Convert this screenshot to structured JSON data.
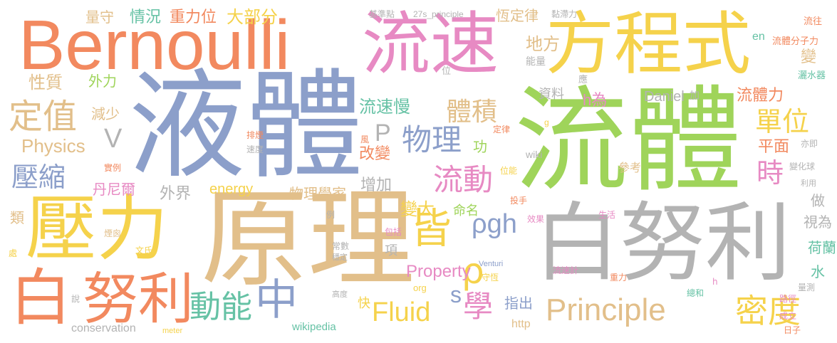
{
  "colors": {
    "orange": "#f2895f",
    "gold": "#f5d24b",
    "green": "#9fd45a",
    "blue": "#8c9fca",
    "tan": "#e2bf8a",
    "pink": "#e78ac3",
    "gray": "#b3b3b3",
    "teal": "#66c2a5"
  },
  "words": [
    {
      "text": "液體"
    },
    {
      "text": "流體"
    },
    {
      "text": "原理"
    },
    {
      "text": "白努利"
    },
    {
      "text": "Bernoulli"
    },
    {
      "text": "流速"
    },
    {
      "text": "方程式"
    },
    {
      "text": "壓力"
    },
    {
      "text": "白"
    },
    {
      "text": "努利"
    },
    {
      "text": "中"
    },
    {
      "text": "皆"
    },
    {
      "text": "ρ"
    },
    {
      "text": "Principle"
    },
    {
      "text": "Fluid"
    },
    {
      "text": "學"
    },
    {
      "text": "動能"
    },
    {
      "text": "密度"
    },
    {
      "text": "物理"
    },
    {
      "text": "流動"
    },
    {
      "text": "單位"
    },
    {
      "text": "時"
    },
    {
      "text": "定值"
    },
    {
      "text": "壓縮"
    },
    {
      "text": "體積"
    },
    {
      "text": "ρgh"
    },
    {
      "text": "V"
    },
    {
      "text": "P"
    },
    {
      "text": "s"
    },
    {
      "text": "Physics"
    },
    {
      "text": "Property"
    },
    {
      "text": "流速慢"
    },
    {
      "text": "情況"
    },
    {
      "text": "重力位"
    },
    {
      "text": "大部分"
    },
    {
      "text": "量守"
    },
    {
      "text": "恆定律"
    },
    {
      "text": "性質"
    },
    {
      "text": "外力"
    },
    {
      "text": "減少"
    },
    {
      "text": "地方"
    },
    {
      "text": "改變"
    },
    {
      "text": "增加"
    },
    {
      "text": "變大"
    },
    {
      "text": "外界"
    },
    {
      "text": "物理學家"
    },
    {
      "text": "丹尼爾"
    },
    {
      "text": "energy"
    },
    {
      "text": "命名"
    },
    {
      "text": "功"
    },
    {
      "text": "h為"
    },
    {
      "text": "Daniel"
    },
    {
      "text": "加"
    },
    {
      "text": "流體力"
    },
    {
      "text": "平面"
    },
    {
      "text": "變"
    },
    {
      "text": "en"
    },
    {
      "text": "流體分子力"
    },
    {
      "text": "流往"
    },
    {
      "text": "灑水器"
    },
    {
      "text": "資料"
    },
    {
      "text": "能量"
    },
    {
      "text": "應"
    },
    {
      "text": "位"
    },
    {
      "text": "參考"
    },
    {
      "text": "做"
    },
    {
      "text": "視為"
    },
    {
      "text": "荷蘭"
    },
    {
      "text": "水"
    },
    {
      "text": "項"
    },
    {
      "text": "指出"
    },
    {
      "text": "快"
    },
    {
      "text": "類"
    },
    {
      "text": "http"
    },
    {
      "text": "wikipedia"
    },
    {
      "text": "conservation"
    },
    {
      "text": "meter"
    },
    {
      "text": "org"
    },
    {
      "text": "27s_principle"
    },
    {
      "text": "基準點"
    },
    {
      "text": "黏滯力"
    },
    {
      "text": "wiki"
    },
    {
      "text": "Venturi"
    },
    {
      "text": "守恆"
    },
    {
      "text": "位能"
    },
    {
      "text": "定律"
    },
    {
      "text": "風"
    },
    {
      "text": "g"
    },
    {
      "text": "排煙"
    },
    {
      "text": "速度"
    },
    {
      "text": "實例"
    },
    {
      "text": "煙囪"
    },
    {
      "text": "文氏"
    },
    {
      "text": "穩定"
    },
    {
      "text": "常數"
    },
    {
      "text": "包括"
    },
    {
      "text": "例"
    },
    {
      "text": "高度"
    },
    {
      "text": "流速計"
    },
    {
      "text": "重力"
    },
    {
      "text": "總和"
    },
    {
      "text": "h"
    },
    {
      "text": "生活"
    },
    {
      "text": "投手"
    },
    {
      "text": "效果"
    },
    {
      "text": "變化球"
    },
    {
      "text": "利用"
    },
    {
      "text": "亦即"
    },
    {
      "text": "路徑"
    },
    {
      "text": "成立"
    },
    {
      "text": "量測"
    },
    {
      "text": "日子"
    },
    {
      "text": "處"
    },
    {
      "text": "說"
    }
  ]
}
